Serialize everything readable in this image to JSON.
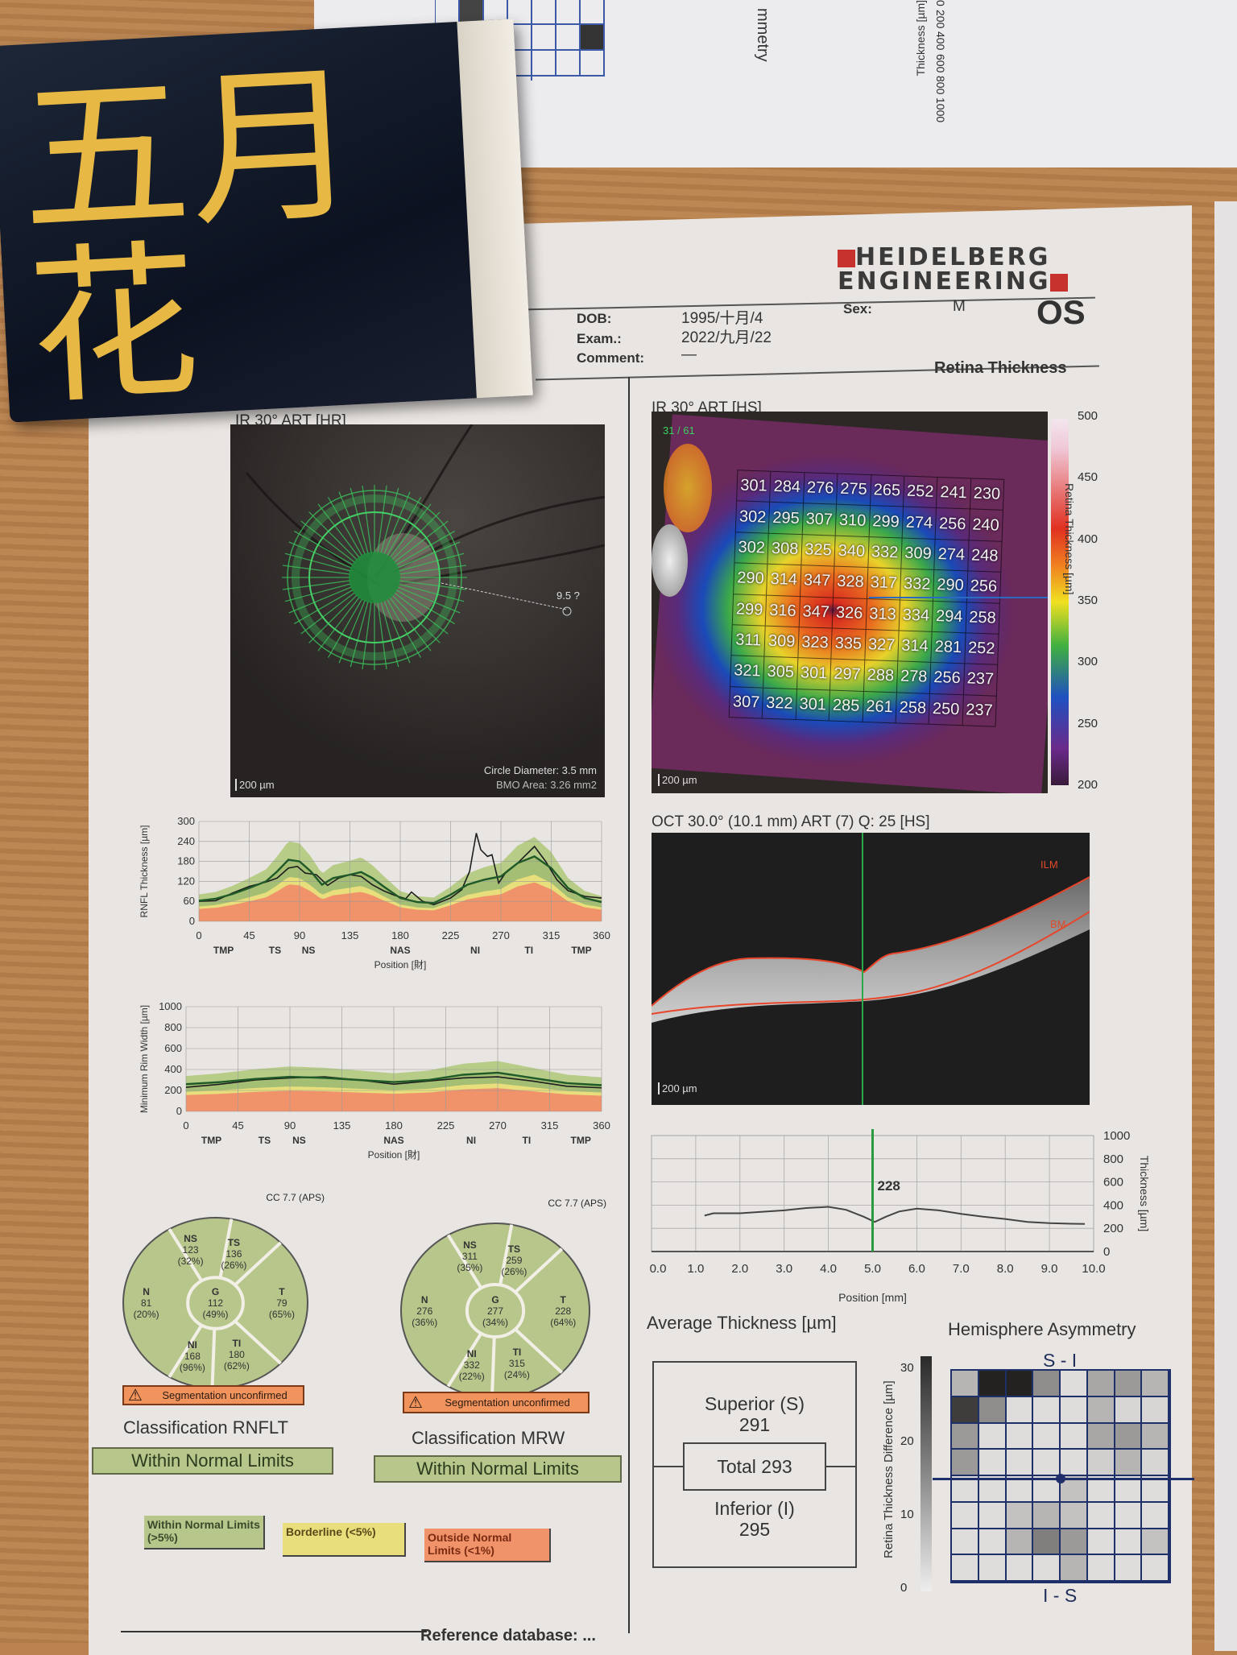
{
  "background_paper": {
    "title_fragment": "mmetry",
    "axis_label": "Thickness [µm]",
    "axis_ticks": [
      "1000",
      "800",
      "600",
      "400",
      "200",
      "0"
    ]
  },
  "package": {
    "brand": "五月花"
  },
  "header": {
    "logo_line1": "HEIDELBERG",
    "logo_line2": "ENGINEERING",
    "dob_label": "DOB:",
    "dob": "1995/十月/4",
    "exam_label": "Exam.:",
    "exam": "2022/九月/22",
    "comment_label": "Comment:",
    "comment": "—",
    "sex_label": "Sex:",
    "sex": "M",
    "eye": "OS",
    "report_type": "Retina Thickness"
  },
  "fundus": {
    "title": "IR 30° ART [HR]",
    "scale": "200 µm",
    "annotation": "9.5 ?",
    "circle_diameter": "Circle Diameter: 3.5 mm",
    "bmo_area": "BMO Area: 3.26 mm2"
  },
  "colors": {
    "within_normal": "#b7c68b",
    "borderline": "#e8de7c",
    "outside_normal": "#f0936a",
    "patient_line": "#1e1e1e",
    "mean_line": "#1f5a28"
  },
  "chart_data": [
    {
      "id": "rnfl",
      "type": "line",
      "ylabel": "RNFL Thickness [µm]",
      "xlabel": "Position [財]",
      "xlim": [
        0,
        360
      ],
      "ylim": [
        0,
        300
      ],
      "xticks": [
        "0",
        "45",
        "90",
        "135",
        "180",
        "225",
        "270",
        "315",
        "360"
      ],
      "yticks": [
        "0",
        "60",
        "120",
        "180",
        "240",
        "300"
      ],
      "sector_labels": [
        "TMP",
        "TS",
        "NS",
        "NAS",
        "NI",
        "TI",
        "TMP"
      ],
      "grid": true,
      "series": [
        {
          "role": "patient",
          "x": [
            0,
            15,
            30,
            45,
            60,
            70,
            80,
            88,
            95,
            105,
            115,
            125,
            135,
            145,
            155,
            165,
            175,
            185,
            190,
            200,
            210,
            225,
            235,
            242,
            248,
            252,
            258,
            262,
            268,
            275,
            285,
            300,
            310,
            320,
            330,
            345,
            360
          ],
          "y": [
            60,
            62,
            85,
            105,
            118,
            130,
            160,
            165,
            145,
            140,
            108,
            130,
            140,
            135,
            110,
            92,
            78,
            68,
            88,
            60,
            50,
            70,
            95,
            150,
            265,
            215,
            195,
            200,
            115,
            150,
            175,
            225,
            180,
            125,
            92,
            75,
            70
          ]
        },
        {
          "role": "normal-mean",
          "x": [
            0,
            15,
            30,
            45,
            60,
            70,
            80,
            90,
            100,
            110,
            120,
            135,
            145,
            155,
            165,
            180,
            195,
            210,
            225,
            240,
            255,
            270,
            285,
            300,
            315,
            330,
            345,
            360
          ],
          "y": [
            62,
            68,
            82,
            100,
            120,
            150,
            185,
            180,
            150,
            110,
            130,
            140,
            148,
            130,
            105,
            70,
            58,
            55,
            80,
            110,
            125,
            135,
            175,
            195,
            160,
            100,
            70,
            58
          ]
        }
      ],
      "bands_note": ""
    },
    {
      "id": "mrw",
      "type": "line",
      "ylabel": "Minimum Rim Width [µm]",
      "xlabel": "Position [財]",
      "xlim": [
        0,
        360
      ],
      "ylim": [
        0,
        1000
      ],
      "xticks": [
        "0",
        "45",
        "90",
        "135",
        "180",
        "225",
        "270",
        "315",
        "360"
      ],
      "yticks": [
        "0",
        "200",
        "400",
        "600",
        "800",
        "1000"
      ],
      "sector_labels": [
        "TMP",
        "TS",
        "NS",
        "NAS",
        "NI",
        "TI",
        "TMP"
      ],
      "grid": true,
      "series": [
        {
          "role": "patient",
          "x": [
            0,
            30,
            60,
            90,
            120,
            150,
            180,
            210,
            240,
            270,
            300,
            330,
            360
          ],
          "y": [
            230,
            260,
            300,
            320,
            330,
            300,
            260,
            290,
            320,
            330,
            290,
            240,
            225
          ]
        },
        {
          "role": "normal-mean",
          "x": [
            0,
            30,
            60,
            90,
            120,
            150,
            180,
            210,
            240,
            270,
            300,
            330,
            360
          ],
          "y": [
            260,
            280,
            310,
            330,
            320,
            300,
            280,
            300,
            350,
            370,
            320,
            270,
            250
          ]
        }
      ]
    },
    {
      "id": "profile",
      "type": "line",
      "ylabel": "Thickness [µm]",
      "xlabel": "Position [mm]",
      "xlim": [
        0,
        10
      ],
      "ylim": [
        0,
        1000
      ],
      "xticks": [
        "0.0",
        "1.0",
        "2.0",
        "3.0",
        "4.0",
        "5.0",
        "6.0",
        "7.0",
        "8.0",
        "9.0",
        "10.0"
      ],
      "yticks": [
        "0",
        "200",
        "400",
        "600",
        "800",
        "1000"
      ],
      "grid": true,
      "cursor_x": 5.0,
      "cursor_label": "228",
      "series": [
        {
          "role": "retina",
          "x": [
            1.2,
            1.4,
            2,
            3,
            3.5,
            4,
            4.4,
            4.8,
            5.05,
            5.3,
            5.6,
            6,
            6.5,
            7,
            7.5,
            8,
            8.5,
            9,
            9.5,
            9.8
          ],
          "y": [
            310,
            330,
            330,
            355,
            375,
            385,
            360,
            300,
            255,
            300,
            345,
            370,
            355,
            325,
            300,
            280,
            255,
            245,
            240,
            238
          ]
        }
      ]
    }
  ],
  "rnfl_classification": {
    "cc": "CC 7.7 (APS)",
    "sectors": [
      {
        "name": "NS",
        "value": "123",
        "pct": "(32%)"
      },
      {
        "name": "TS",
        "value": "136",
        "pct": "(26%)"
      },
      {
        "name": "T",
        "value": "79",
        "pct": "(65%)"
      },
      {
        "name": "TI",
        "value": "180",
        "pct": "(62%)"
      },
      {
        "name": "NI",
        "value": "168",
        "pct": "(96%)"
      },
      {
        "name": "N",
        "value": "81",
        "pct": "(20%)"
      },
      {
        "name": "G",
        "value": "112",
        "pct": "(49%)"
      }
    ],
    "warning": "Segmentation unconfirmed",
    "title": "Classification RNFLT",
    "result": "Within Normal Limits"
  },
  "mrw_classification": {
    "cc": "CC 7.7 (APS)",
    "sectors": [
      {
        "name": "NS",
        "value": "311",
        "pct": "(35%)"
      },
      {
        "name": "TS",
        "value": "259",
        "pct": "(26%)"
      },
      {
        "name": "T",
        "value": "228",
        "pct": "(64%)"
      },
      {
        "name": "TI",
        "value": "315",
        "pct": "(24%)"
      },
      {
        "name": "NI",
        "value": "332",
        "pct": "(22%)"
      },
      {
        "name": "N",
        "value": "276",
        "pct": "(36%)"
      },
      {
        "name": "G",
        "value": "277",
        "pct": "(34%)"
      }
    ],
    "warning": "Segmentation unconfirmed",
    "title": "Classification MRW",
    "result": "Within Normal Limits"
  },
  "legend": [
    {
      "label": "Within Normal Limits (>5%)",
      "color": "#b7c68b"
    },
    {
      "label": "Borderline (<5%)",
      "color": "#e8de7c"
    },
    {
      "label": "Outside Normal Limits (<1%)",
      "color": "#f0936a"
    }
  ],
  "footer": {
    "reference": "Reference database: ..."
  },
  "thickness_map": {
    "title": "IR 30° ART [HS]",
    "frame": "31 / 61",
    "scale": "200 µm",
    "colorbar_label": "Retina Thickness [µm]",
    "colorbar_ticks": [
      "500",
      "450",
      "400",
      "350",
      "300",
      "250",
      "200"
    ],
    "grid": [
      [
        "301",
        "284",
        "276",
        "275",
        "265",
        "252",
        "241",
        "230"
      ],
      [
        "302",
        "295",
        "307",
        "310",
        "299",
        "274",
        "256",
        "240"
      ],
      [
        "302",
        "308",
        "325",
        "340",
        "332",
        "309",
        "274",
        "248"
      ],
      [
        "290",
        "314",
        "347",
        "328",
        "317",
        "332",
        "290",
        "256"
      ],
      [
        "299",
        "316",
        "347",
        "326",
        "313",
        "334",
        "294",
        "258"
      ],
      [
        "311",
        "309",
        "323",
        "335",
        "327",
        "314",
        "281",
        "252"
      ],
      [
        "321",
        "305",
        "301",
        "297",
        "288",
        "278",
        "256",
        "237"
      ],
      [
        "307",
        "322",
        "301",
        "285",
        "261",
        "258",
        "250",
        "237"
      ]
    ]
  },
  "oct": {
    "title": "OCT 30.0° (10.1 mm) ART (7) Q: 25 [HS]",
    "ilm_label": "ILM",
    "bm_label": "BM",
    "scale": "200 µm"
  },
  "average_thickness": {
    "title": "Average Thickness [µm]",
    "superior_label": "Superior (S)",
    "superior": "291",
    "total_label": "Total 293",
    "inferior_label": "Inferior (I)",
    "inferior": "295"
  },
  "hemisphere_asymmetry": {
    "title": "Hemisphere Asymmetry",
    "top_label": "S - I",
    "bottom_label": "I - S",
    "colorbar_label": "Retina Thickness Difference [µm]",
    "colorbar_ticks": [
      "30",
      "20",
      "10",
      "0"
    ],
    "range": [
      0,
      30
    ],
    "grid": [
      [
        8,
        30,
        30,
        14,
        2,
        10,
        12,
        8
      ],
      [
        26,
        14,
        2,
        2,
        2,
        8,
        3,
        3
      ],
      [
        12,
        2,
        2,
        2,
        2,
        10,
        12,
        8
      ],
      [
        12,
        2,
        2,
        2,
        2,
        4,
        8,
        3
      ],
      [
        2,
        2,
        2,
        2,
        6,
        2,
        2,
        2
      ],
      [
        2,
        2,
        6,
        8,
        6,
        2,
        2,
        2
      ],
      [
        2,
        2,
        8,
        16,
        12,
        2,
        2,
        6
      ],
      [
        2,
        2,
        2,
        2,
        8,
        2,
        2,
        2
      ]
    ]
  }
}
